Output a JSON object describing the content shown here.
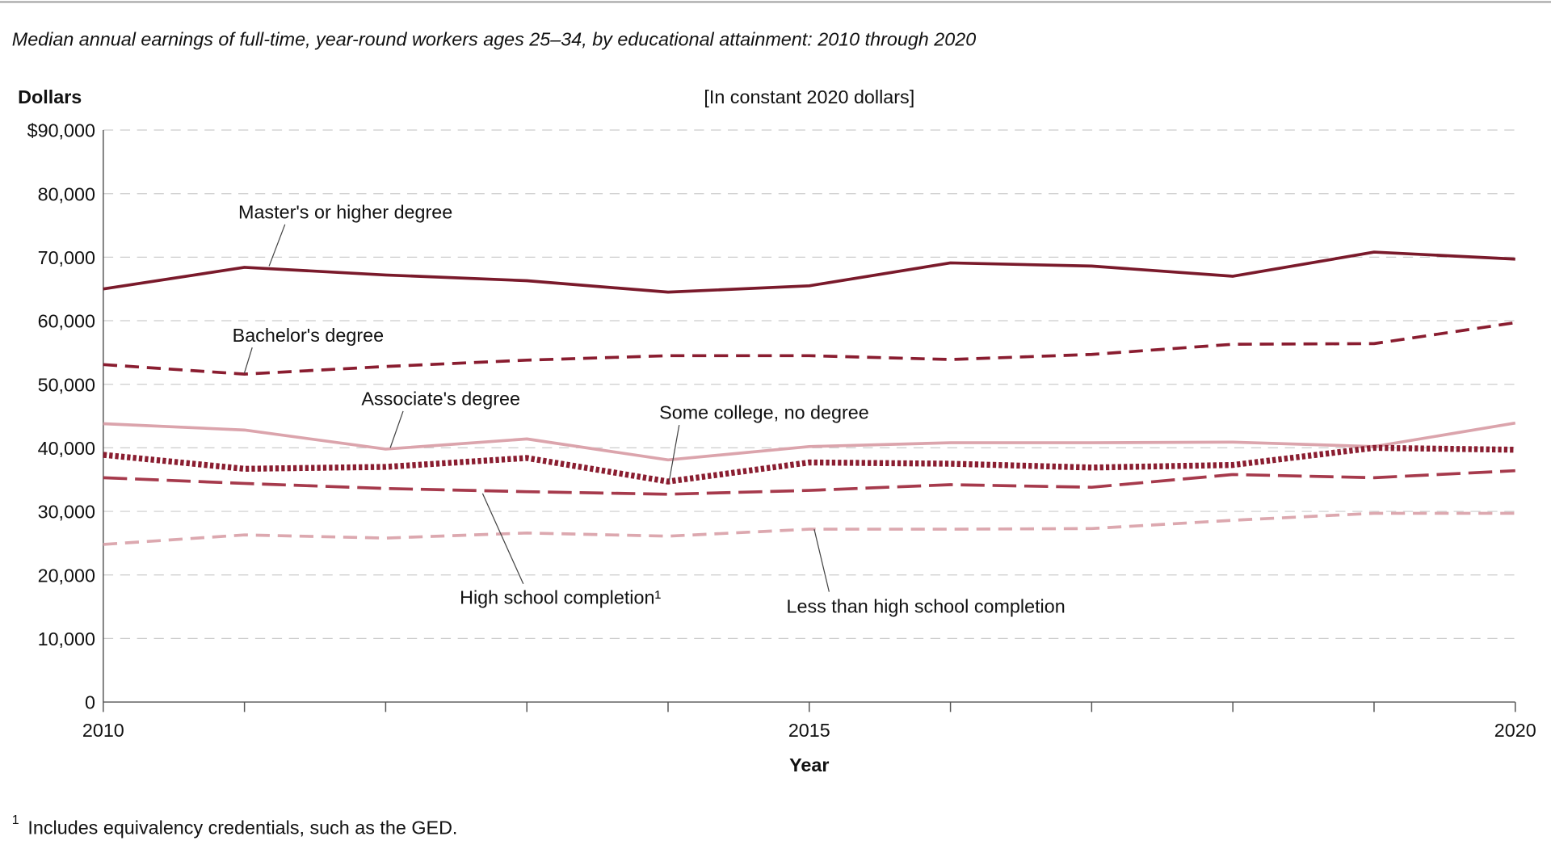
{
  "chart_data": {
    "type": "line",
    "title": "Median annual earnings of full-time, year-round workers ages 25–34, by educational attainment: 2010 through 2020",
    "subtitle": "[In constant 2020 dollars]",
    "xlabel": "Year",
    "ylabel": "Dollars",
    "x": [
      2010,
      2011,
      2012,
      2013,
      2014,
      2015,
      2016,
      2017,
      2018,
      2019,
      2020
    ],
    "xlim": [
      2010,
      2020
    ],
    "ylim": [
      0,
      90000
    ],
    "x_ticks": [
      2010,
      2011,
      2012,
      2013,
      2014,
      2015,
      2016,
      2017,
      2018,
      2019,
      2020
    ],
    "x_tick_labels": [
      "2010",
      "",
      "",
      "",
      "",
      "2015",
      "",
      "",
      "",
      "",
      "2020"
    ],
    "y_ticks": [
      0,
      10000,
      20000,
      30000,
      40000,
      50000,
      60000,
      70000,
      80000,
      90000
    ],
    "y_tick_labels": [
      "0",
      "10,000",
      "20,000",
      "30,000",
      "40,000",
      "50,000",
      "60,000",
      "70,000",
      "80,000",
      "$90,000"
    ],
    "grid": "horizontal dashed",
    "legend": "inline labels",
    "series": [
      {
        "name": "Master's or higher degree",
        "color": "#7a1a2b",
        "style": "solid",
        "values": [
          65000,
          68400,
          67200,
          66300,
          64500,
          65500,
          69100,
          68600,
          67000,
          70800,
          69700
        ]
      },
      {
        "name": "Bachelor's degree",
        "color": "#8a1d30",
        "style": "dashed",
        "values": [
          53100,
          51600,
          52800,
          53800,
          54500,
          54500,
          53900,
          54700,
          56300,
          56400,
          59700
        ]
      },
      {
        "name": "Associate's degree",
        "color": "#dba4ac",
        "style": "solid",
        "values": [
          43800,
          42800,
          39800,
          41400,
          38100,
          40200,
          40800,
          40800,
          40900,
          40200,
          43900
        ]
      },
      {
        "name": "Some college, no degree",
        "color": "#8a1d30",
        "style": "dotted",
        "values": [
          38900,
          36700,
          37000,
          38400,
          34700,
          37700,
          37500,
          36900,
          37300,
          40000,
          39700
        ]
      },
      {
        "name": "High school completion¹",
        "color": "#a63a4c",
        "style": "longdash",
        "values": [
          35300,
          34400,
          33600,
          33100,
          32700,
          33300,
          34200,
          33800,
          35800,
          35300,
          36400
        ]
      },
      {
        "name": "Less than high school completion",
        "color": "#dca8af",
        "style": "dashed",
        "values": [
          24800,
          26300,
          25800,
          26600,
          26100,
          27200,
          27200,
          27300,
          28600,
          29700,
          29700
        ]
      }
    ],
    "footnote_mark": "1",
    "footnote": "Includes equivalency credentials, such as the GED."
  }
}
